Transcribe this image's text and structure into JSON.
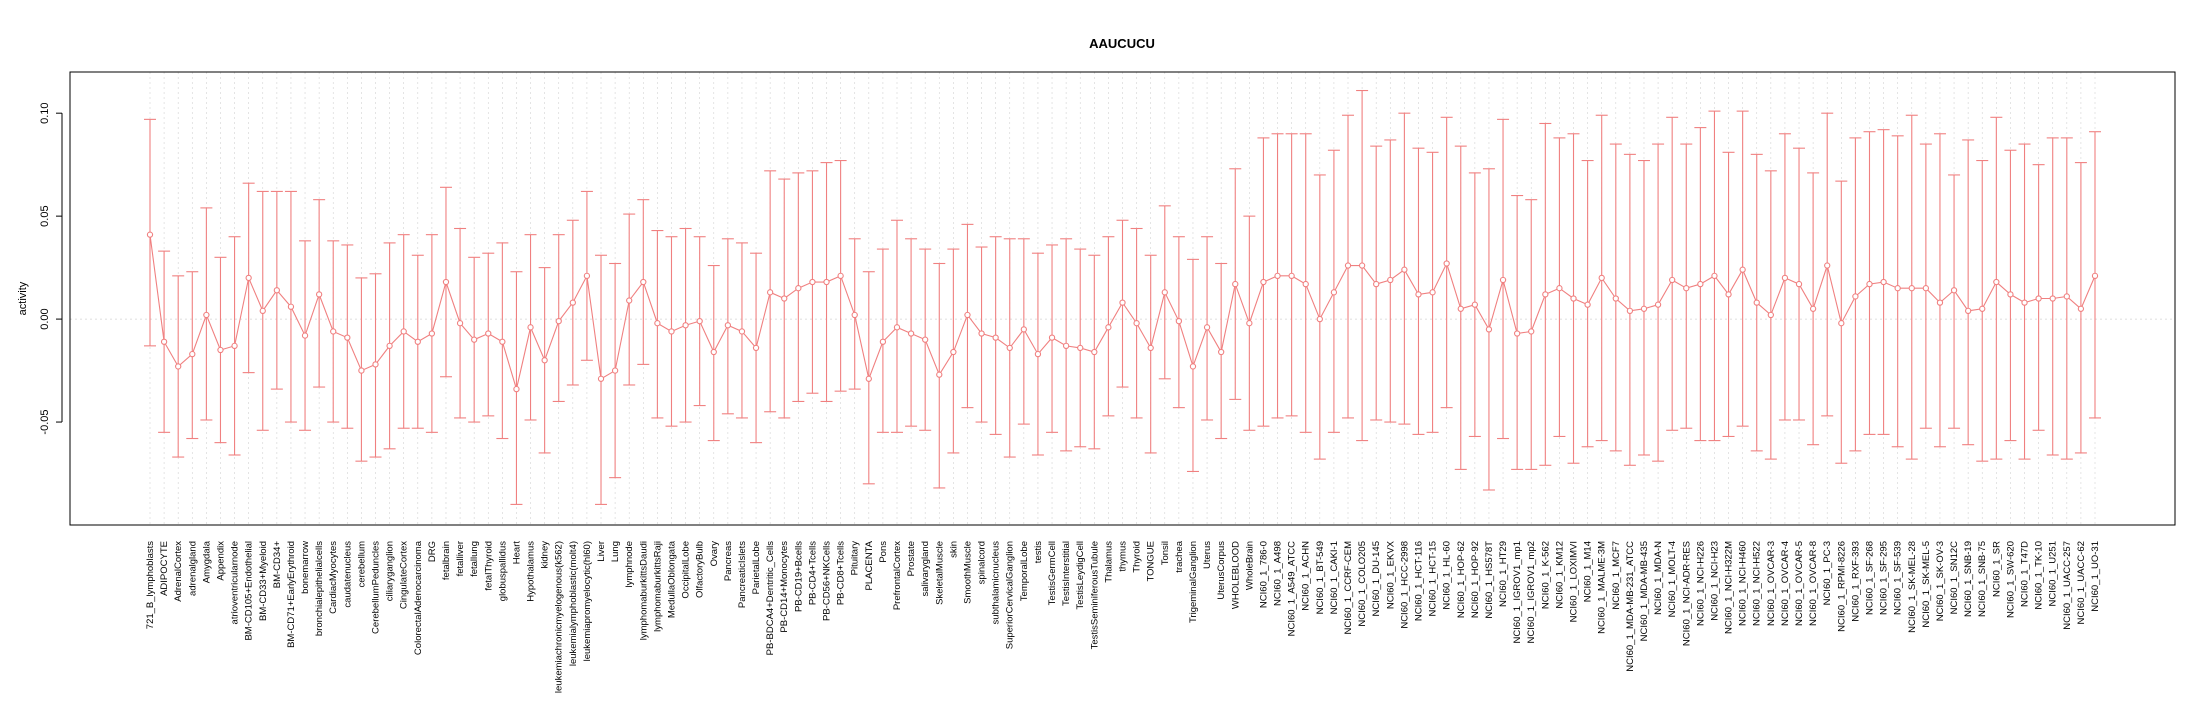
{
  "chart_data": {
    "type": "line",
    "title": "AAUCUCU",
    "xlabel": "",
    "ylabel": "activity",
    "ylim": [
      -0.1,
      0.12
    ],
    "yticks": [
      -0.05,
      0.0,
      0.05,
      0.1
    ],
    "ytick_labels": [
      "-0.05",
      "0.00",
      "0.05",
      "0.10"
    ],
    "grid": true,
    "reference_line": 0.0,
    "colors": {
      "series": "#f08080",
      "grid": "#d3d3d3",
      "axis": "#000000"
    },
    "categories": [
      "721_B_lymphoblasts",
      "ADIPOCYTE",
      "AdrenalCortex",
      "adrenalgland",
      "Amygdala",
      "Appendix",
      "atrioventricularnode",
      "BM-CD105+Endothelial",
      "BM-CD33+Myeloid",
      "BM-CD34+",
      "BM-CD71+EarlyErythroid",
      "bonemarrow",
      "bronchialepithelialcells",
      "CardiacMyocytes",
      "caudatenucleus",
      "cerebellum",
      "CerebellumPeduncles",
      "ciliaryganglion",
      "CingulateCortex",
      "ColorectalAdenocarcinoma",
      "DRG",
      "fetalbrain",
      "fetalliver",
      "fetallung",
      "fetalThyroid",
      "globuspallidus",
      "Heart",
      "Hypothalamus",
      "kidney",
      "leukemiachronicmyelogenous(k562)",
      "leukemialymphoblastic(molt4)",
      "leukemiapromyelocytic(hl60)",
      "Liver",
      "Lung",
      "lymphnode",
      "lymphomaburkittsDaudi",
      "lymphomaburkittsRaji",
      "MedullaOblongata",
      "OccipitalLobe",
      "OlfactoryBulb",
      "Ovary",
      "Pancreas",
      "PancreaticIslets",
      "ParietalLobe",
      "PB-BDCA4+Dentritic_Cells",
      "PB-CD14+Monocytes",
      "PB-CD19+Bcells",
      "PB-CD4+Tcells",
      "PB-CD56+NKCells",
      "PB-CD8+Tcells",
      "Pituitary",
      "PLACENTA",
      "Pons",
      "PrefrontalCortex",
      "Prostate",
      "salivarygland",
      "SkeletalMuscle",
      "skin",
      "SmoothMuscle",
      "spinalcord",
      "subthalamicnucleus",
      "SuperiorCervicalGanglion",
      "TemporalLobe",
      "testis",
      "TestisGermCell",
      "TestisInterstitial",
      "TestisLeydigCell",
      "TestisSeminiferousTubule",
      "Thalamus",
      "thymus",
      "Thyroid",
      "TONGUE",
      "Tonsil",
      "trachea",
      "TrigeminalGanglion",
      "Uterus",
      "UterusCorpus",
      "WHOLEBLOOD",
      "WholeBrain",
      "NCI60_1_786-0",
      "NCI60_1_A498",
      "NCI60_1_A549_ATCC",
      "NCI60_1_ACHN",
      "NCI60_1_BT-549",
      "NCI60_1_CAKI-1",
      "NCI60_1_CCRF-CEM",
      "NCI60_1_COLO205",
      "NCI60_1_DU-145",
      "NCI60_1_EKVX",
      "NCI60_1_HCC-2998",
      "NCI60_1_HCT-116",
      "NCI60_1_HCT-15",
      "NCI60_1_HL-60",
      "NCI60_1_HOP-62",
      "NCI60_1_HOP-92",
      "NCI60_1_HS578T",
      "NCI60_1_HT29",
      "NCI60_1_IGROV1_mp1",
      "NCI60_1_IGROV1_mp2",
      "NCI60_1_K-562",
      "NCI60_1_KM12",
      "NCI60_1_LOXIMVI",
      "NCI60_1_M14",
      "NCI60_1_MALME-3M",
      "NCI60_1_MCF7",
      "NCI60_1_MDA-MB-231_ATCC",
      "NCI60_1_MDA-MB-435",
      "NCI60_1_MDA-N",
      "NCI60_1_MOLT-4",
      "NCI60_1_NCI-ADR-RES",
      "NCI60_1_NCI-H226",
      "NCI60_1_NCI-H23",
      "NCI60_1_NCI-H322M",
      "NCI60_1_NCI-H460",
      "NCI60_1_NCI-H522",
      "NCI60_1_OVCAR-3",
      "NCI60_1_OVCAR-4",
      "NCI60_1_OVCAR-5",
      "NCI60_1_OVCAR-8",
      "NCI60_1_PC-3",
      "NCI60_1_RPMI-8226",
      "NCI60_1_RXF-393",
      "NCI60_1_SF-268",
      "NCI60_1_SF-295",
      "NCI60_1_SF-539",
      "NCI60_1_SK-MEL-28",
      "NCI60_1_SK-MEL-5",
      "NCI60_1_SK-OV-3",
      "NCI60_1_SN12C",
      "NCI60_1_SNB-19",
      "NCI60_1_SNB-75",
      "NCI60_1_SR",
      "NCI60_1_SW-620",
      "NCI60_1_T47D",
      "NCI60_1_TK-10",
      "NCI60_1_U251",
      "NCI60_1_UACC-257",
      "NCI60_1_UACC-62",
      "NCI60_1_UO-31"
    ],
    "series": [
      {
        "name": "activity",
        "values": [
          0.041,
          -0.011,
          -0.023,
          -0.017,
          0.002,
          -0.015,
          -0.013,
          0.02,
          0.004,
          0.014,
          0.006,
          -0.008,
          0.012,
          -0.006,
          -0.009,
          -0.025,
          -0.022,
          -0.013,
          -0.006,
          -0.011,
          -0.007,
          0.018,
          -0.002,
          -0.01,
          -0.007,
          -0.011,
          -0.034,
          -0.004,
          -0.02,
          -0.001,
          0.008,
          0.021,
          -0.029,
          -0.025,
          0.009,
          0.018,
          -0.002,
          -0.006,
          -0.003,
          -0.001,
          -0.016,
          -0.003,
          -0.006,
          -0.014,
          0.013,
          0.01,
          0.015,
          0.018,
          0.018,
          0.021,
          0.002,
          -0.029,
          -0.011,
          -0.004,
          -0.007,
          -0.01,
          -0.027,
          -0.016,
          0.002,
          -0.007,
          -0.009,
          -0.014,
          -0.005,
          -0.017,
          -0.009,
          -0.013,
          -0.014,
          -0.016,
          -0.004,
          0.008,
          -0.002,
          -0.014,
          0.013,
          -0.001,
          -0.023,
          -0.004,
          -0.016,
          0.017,
          -0.002,
          0.018,
          0.021,
          0.021,
          0.017,
          0.0,
          0.013,
          0.026,
          0.026,
          0.017,
          0.019,
          0.024,
          0.012,
          0.013,
          0.027,
          0.005,
          0.007,
          -0.005,
          0.019,
          -0.007,
          -0.006,
          0.012,
          0.015,
          0.01,
          0.007,
          0.02,
          0.01,
          0.004,
          0.005,
          0.007,
          0.019,
          0.015,
          0.017,
          0.021,
          0.012,
          0.024,
          0.008,
          0.002,
          0.02,
          0.017,
          0.005,
          0.026,
          -0.002,
          0.011,
          0.017,
          0.018,
          0.015,
          0.015,
          0.015,
          0.008,
          0.014,
          0.004,
          0.005,
          0.018,
          0.012,
          0.008,
          0.01,
          0.01,
          0.011,
          0.005,
          0.021
        ],
        "upper": [
          0.097,
          0.033,
          0.021,
          0.023,
          0.054,
          0.03,
          0.04,
          0.066,
          0.062,
          0.062,
          0.062,
          0.038,
          0.058,
          0.038,
          0.036,
          0.02,
          0.022,
          0.037,
          0.041,
          0.031,
          0.041,
          0.064,
          0.044,
          0.03,
          0.032,
          0.037,
          0.023,
          0.041,
          0.025,
          0.041,
          0.048,
          0.062,
          0.031,
          0.027,
          0.051,
          0.058,
          0.043,
          0.04,
          0.044,
          0.04,
          0.026,
          0.039,
          0.037,
          0.032,
          0.072,
          0.068,
          0.071,
          0.072,
          0.076,
          0.077,
          0.039,
          0.023,
          0.034,
          0.048,
          0.039,
          0.034,
          0.027,
          0.034,
          0.046,
          0.035,
          0.04,
          0.039,
          0.039,
          0.032,
          0.036,
          0.039,
          0.034,
          0.031,
          0.04,
          0.048,
          0.044,
          0.031,
          0.055,
          0.04,
          0.029,
          0.04,
          0.027,
          0.073,
          0.05,
          0.088,
          0.09,
          0.09,
          0.09,
          0.07,
          0.082,
          0.099,
          0.111,
          0.084,
          0.087,
          0.1,
          0.083,
          0.081,
          0.098,
          0.084,
          0.071,
          0.073,
          0.097,
          0.06,
          0.058,
          0.095,
          0.088,
          0.09,
          0.077,
          0.099,
          0.085,
          0.08,
          0.077,
          0.085,
          0.098,
          0.085,
          0.093,
          0.101,
          0.081,
          0.101,
          0.08,
          0.072,
          0.09,
          0.083,
          0.071,
          0.1,
          0.067,
          0.088,
          0.091,
          0.092,
          0.089,
          0.099,
          0.085,
          0.09,
          0.07,
          0.087,
          0.077,
          0.098,
          0.082,
          0.085,
          0.075,
          0.088,
          0.088,
          0.076,
          0.091
        ],
        "lower": [
          -0.013,
          -0.055,
          -0.067,
          -0.058,
          -0.049,
          -0.06,
          -0.066,
          -0.026,
          -0.054,
          -0.034,
          -0.05,
          -0.054,
          -0.033,
          -0.05,
          -0.053,
          -0.069,
          -0.067,
          -0.063,
          -0.053,
          -0.053,
          -0.055,
          -0.028,
          -0.048,
          -0.05,
          -0.047,
          -0.058,
          -0.09,
          -0.049,
          -0.065,
          -0.04,
          -0.032,
          -0.02,
          -0.09,
          -0.077,
          -0.032,
          -0.022,
          -0.048,
          -0.052,
          -0.05,
          -0.042,
          -0.059,
          -0.046,
          -0.048,
          -0.06,
          -0.045,
          -0.048,
          -0.04,
          -0.036,
          -0.04,
          -0.035,
          -0.034,
          -0.08,
          -0.055,
          -0.055,
          -0.052,
          -0.054,
          -0.082,
          -0.065,
          -0.043,
          -0.05,
          -0.056,
          -0.067,
          -0.051,
          -0.066,
          -0.055,
          -0.064,
          -0.062,
          -0.063,
          -0.047,
          -0.033,
          -0.048,
          -0.065,
          -0.029,
          -0.043,
          -0.074,
          -0.049,
          -0.058,
          -0.039,
          -0.054,
          -0.052,
          -0.048,
          -0.047,
          -0.055,
          -0.068,
          -0.055,
          -0.048,
          -0.059,
          -0.049,
          -0.05,
          -0.051,
          -0.056,
          -0.055,
          -0.043,
          -0.073,
          -0.057,
          -0.083,
          -0.058,
          -0.073,
          -0.073,
          -0.071,
          -0.057,
          -0.07,
          -0.062,
          -0.059,
          -0.064,
          -0.071,
          -0.066,
          -0.069,
          -0.054,
          -0.053,
          -0.059,
          -0.059,
          -0.057,
          -0.052,
          -0.064,
          -0.068,
          -0.049,
          -0.049,
          -0.061,
          -0.047,
          -0.07,
          -0.064,
          -0.056,
          -0.056,
          -0.062,
          -0.068,
          -0.053,
          -0.062,
          -0.053,
          -0.061,
          -0.069,
          -0.068,
          -0.059,
          -0.068,
          -0.054,
          -0.066,
          -0.068,
          -0.065,
          -0.048
        ]
      }
    ]
  }
}
